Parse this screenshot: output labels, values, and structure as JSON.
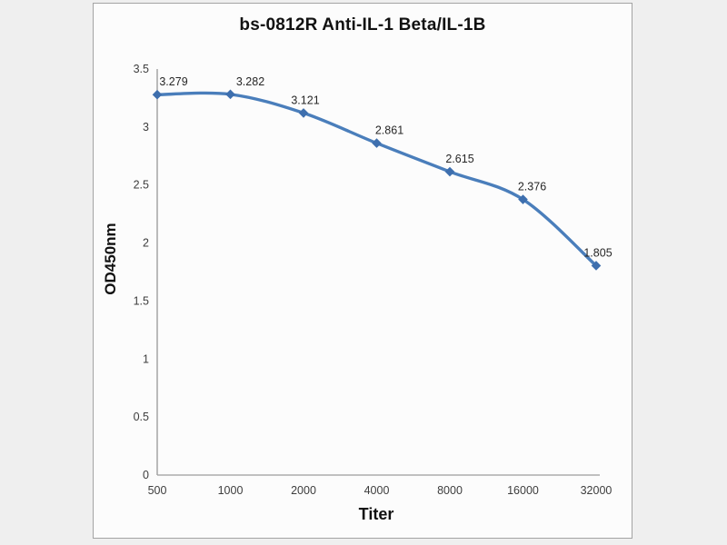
{
  "chart_data": {
    "type": "line",
    "title": "bs-0812R Anti-IL-1 Beta/IL-1B",
    "xlabel": "Titer",
    "ylabel": "OD450nm",
    "categories": [
      "500",
      "1000",
      "2000",
      "4000",
      "8000",
      "16000",
      "32000"
    ],
    "series": [
      {
        "name": "OD450nm",
        "values": [
          3.279,
          3.282,
          3.121,
          2.861,
          2.615,
          2.376,
          1.805
        ],
        "point_labels": [
          "3.279",
          "3.282",
          "3.121",
          "2.861",
          "2.615",
          "2.376",
          "1.805"
        ]
      }
    ],
    "y_ticks": [
      "0",
      "0.5",
      "1",
      "1.5",
      "2",
      "2.5",
      "3",
      "3.5"
    ],
    "ylim": [
      0,
      3.5
    ],
    "grid": false,
    "legend": "none",
    "line_style": "smooth",
    "marker": "diamond",
    "line_color": "#4a7ebb",
    "marker_color": "#3e6fae",
    "axis_color": "#9b9b9b",
    "panel_border_color": "#a3a3a3",
    "panel_bg": "#fcfcfc",
    "page_bg": "#efefef"
  }
}
